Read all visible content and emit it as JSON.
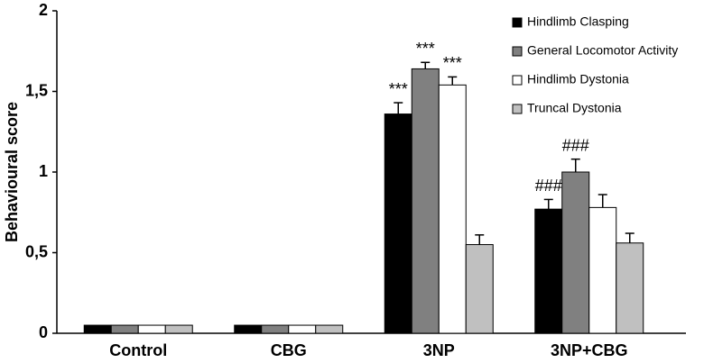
{
  "chart_data": {
    "type": "bar",
    "y_label": "Behavioural score",
    "categories": [
      "Control",
      "CBG",
      "3NP",
      "3NP+CBG"
    ],
    "series": [
      {
        "name": "Hindlimb Clasping",
        "color": "#000000",
        "values": [
          0.05,
          0.05,
          1.36,
          0.77
        ],
        "errors": [
          null,
          null,
          0.07,
          0.06
        ],
        "annotations": [
          null,
          null,
          "***",
          "###"
        ]
      },
      {
        "name": "General Locomotor Activity",
        "color": "#808080",
        "values": [
          0.05,
          0.05,
          1.64,
          1.0
        ],
        "errors": [
          null,
          null,
          0.04,
          0.08
        ],
        "annotations": [
          null,
          null,
          "***",
          "###"
        ]
      },
      {
        "name": "Hindlimb Dystonia",
        "color": "#ffffff",
        "values": [
          0.05,
          0.05,
          1.54,
          0.78
        ],
        "errors": [
          null,
          null,
          0.05,
          0.08
        ],
        "annotations": [
          null,
          null,
          "***",
          null
        ]
      },
      {
        "name": "Truncal Dystonia",
        "color": "#c0c0c0",
        "values": [
          0.05,
          0.05,
          0.55,
          0.56
        ],
        "errors": [
          null,
          null,
          0.06,
          0.06
        ],
        "annotations": [
          null,
          null,
          null,
          null
        ]
      }
    ],
    "ylim": [
      0,
      2
    ],
    "yticks": [
      0,
      {
        "value": 0.5,
        "label": "0,5"
      },
      1,
      {
        "value": 1.5,
        "label": "1,5"
      },
      2
    ],
    "legend": "top-right",
    "grid": false
  }
}
